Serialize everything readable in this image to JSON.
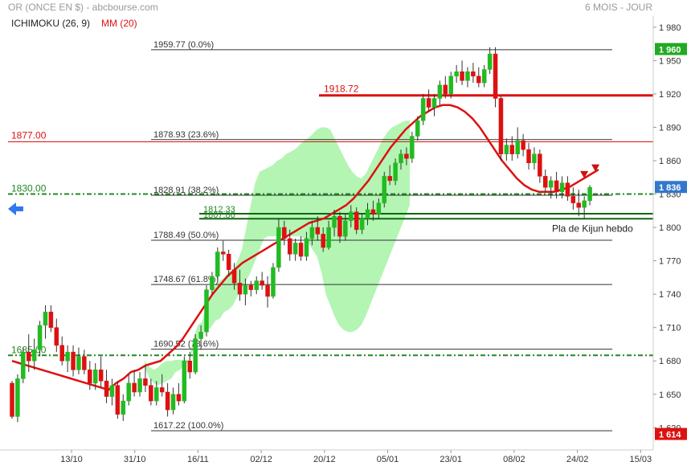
{
  "header": {
    "title": "OR (ONCE EN $) - abcbourse.com",
    "period": "6 MOIS - JOUR",
    "indicator1": "ICHIMOKU (26, 9)",
    "indicator2": "MM (20)"
  },
  "colors": {
    "up": "#22bb22",
    "down": "#dd1111",
    "cloud_bull": "#b4f5b4",
    "cloud_bear": "#f07878",
    "line": "#dd1111",
    "green_level": "#228822",
    "last_badge": "#22aa22",
    "low_badge": "#dd1111",
    "current_badge": "#3377cc",
    "nav_arrow": "#3377ee"
  },
  "chart_data": {
    "type": "candlestick",
    "ylim": [
      1600,
      1990
    ],
    "y_ticks": [
      "1 980",
      "1 950",
      "1 920",
      "1 890",
      "1 860",
      "1 830",
      "1 800",
      "1 770",
      "1 740",
      "1 710",
      "1 680",
      "1 650",
      "1 620"
    ],
    "y_tick_values": [
      1980,
      1950,
      1920,
      1890,
      1860,
      1830,
      1800,
      1770,
      1740,
      1710,
      1680,
      1650,
      1620
    ],
    "x_ticks": [
      "13/10",
      "31/10",
      "16/11",
      "02/12",
      "20/12",
      "05/01",
      "23/01",
      "08/02",
      "24/02",
      "15/03"
    ],
    "x_tick_index": [
      16,
      31,
      45,
      59,
      73,
      87,
      101,
      115,
      129,
      143
    ],
    "n_slots": 146,
    "fibonacci": [
      {
        "label": "1959.77  (0.0%)",
        "value": 1959.77
      },
      {
        "label": "1878.93  (23.6%)",
        "value": 1878.93
      },
      {
        "label": "1828.91  (38.2%)",
        "value": 1828.91
      },
      {
        "label": "1788.49  (50.0%)",
        "value": 1788.49
      },
      {
        "label": "1748.67  (61.8%)",
        "value": 1748.67
      },
      {
        "label": "1690.52  (78.6%)",
        "value": 1690.52
      },
      {
        "label": "1617.22  (100.0%)",
        "value": 1617.22
      }
    ],
    "red_levels": [
      {
        "label": "1918.72",
        "value": 1918.72
      },
      {
        "label": "1877.00",
        "value": 1877.0
      }
    ],
    "green_levels": [
      {
        "label": "1830.00",
        "value": 1830.0
      },
      {
        "label": "1685.00",
        "value": 1685.0
      }
    ],
    "green_zone": {
      "labels": [
        "1812.33",
        "1807.86"
      ],
      "values": [
        1812.33,
        1807.86
      ]
    },
    "annotation": "Pla de Kijun hebdo",
    "last_price": "1 836",
    "last_value": 1836,
    "high_badge": "1 960",
    "high_value": 1960,
    "low_badge": "1 614",
    "low_value": 1614,
    "candles": [
      [
        1660,
        1662,
        1628,
        1630
      ],
      [
        1630,
        1668,
        1625,
        1664
      ],
      [
        1664,
        1692,
        1660,
        1688
      ],
      [
        1688,
        1704,
        1670,
        1680
      ],
      [
        1680,
        1700,
        1672,
        1690
      ],
      [
        1690,
        1716,
        1684,
        1712
      ],
      [
        1712,
        1730,
        1700,
        1724
      ],
      [
        1724,
        1730,
        1706,
        1710
      ],
      [
        1710,
        1718,
        1688,
        1694
      ],
      [
        1694,
        1702,
        1676,
        1680
      ],
      [
        1680,
        1694,
        1670,
        1688
      ],
      [
        1688,
        1694,
        1666,
        1672
      ],
      [
        1672,
        1692,
        1668,
        1684
      ],
      [
        1684,
        1690,
        1668,
        1672
      ],
      [
        1672,
        1680,
        1654,
        1660
      ],
      [
        1660,
        1678,
        1654,
        1672
      ],
      [
        1672,
        1684,
        1656,
        1662
      ],
      [
        1662,
        1672,
        1642,
        1648
      ],
      [
        1648,
        1664,
        1640,
        1658
      ],
      [
        1658,
        1662,
        1628,
        1632
      ],
      [
        1632,
        1650,
        1626,
        1644
      ],
      [
        1644,
        1668,
        1640,
        1660
      ],
      [
        1660,
        1672,
        1648,
        1652
      ],
      [
        1652,
        1670,
        1648,
        1664
      ],
      [
        1664,
        1676,
        1652,
        1658
      ],
      [
        1658,
        1664,
        1640,
        1644
      ],
      [
        1644,
        1662,
        1640,
        1656
      ],
      [
        1656,
        1668,
        1648,
        1652
      ],
      [
        1652,
        1660,
        1630,
        1636
      ],
      [
        1636,
        1656,
        1632,
        1650
      ],
      [
        1650,
        1660,
        1640,
        1644
      ],
      [
        1644,
        1684,
        1642,
        1680
      ],
      [
        1680,
        1688,
        1664,
        1670
      ],
      [
        1670,
        1704,
        1668,
        1700
      ],
      [
        1700,
        1712,
        1690,
        1706
      ],
      [
        1706,
        1748,
        1702,
        1744
      ],
      [
        1744,
        1760,
        1740,
        1756
      ],
      [
        1756,
        1782,
        1752,
        1778
      ],
      [
        1778,
        1788,
        1770,
        1776
      ],
      [
        1776,
        1780,
        1756,
        1762
      ],
      [
        1762,
        1768,
        1744,
        1750
      ],
      [
        1750,
        1762,
        1734,
        1740
      ],
      [
        1740,
        1754,
        1730,
        1748
      ],
      [
        1748,
        1752,
        1738,
        1744
      ],
      [
        1744,
        1756,
        1740,
        1752
      ],
      [
        1752,
        1760,
        1744,
        1748
      ],
      [
        1748,
        1756,
        1728,
        1738
      ],
      [
        1738,
        1768,
        1736,
        1764
      ],
      [
        1764,
        1808,
        1760,
        1800
      ],
      [
        1800,
        1806,
        1784,
        1790
      ],
      [
        1790,
        1798,
        1770,
        1776
      ],
      [
        1776,
        1790,
        1770,
        1786
      ],
      [
        1786,
        1792,
        1770,
        1774
      ],
      [
        1774,
        1796,
        1770,
        1790
      ],
      [
        1790,
        1806,
        1784,
        1800
      ],
      [
        1800,
        1810,
        1788,
        1794
      ],
      [
        1794,
        1800,
        1778,
        1782
      ],
      [
        1782,
        1806,
        1780,
        1800
      ],
      [
        1800,
        1816,
        1792,
        1810
      ],
      [
        1810,
        1814,
        1786,
        1792
      ],
      [
        1792,
        1812,
        1788,
        1806
      ],
      [
        1806,
        1820,
        1800,
        1814
      ],
      [
        1814,
        1818,
        1794,
        1798
      ],
      [
        1798,
        1812,
        1794,
        1808
      ],
      [
        1808,
        1822,
        1802,
        1816
      ],
      [
        1816,
        1824,
        1806,
        1812
      ],
      [
        1812,
        1826,
        1808,
        1822
      ],
      [
        1822,
        1850,
        1818,
        1846
      ],
      [
        1846,
        1856,
        1838,
        1842
      ],
      [
        1842,
        1862,
        1838,
        1858
      ],
      [
        1858,
        1870,
        1852,
        1866
      ],
      [
        1866,
        1872,
        1856,
        1862
      ],
      [
        1862,
        1886,
        1858,
        1882
      ],
      [
        1882,
        1900,
        1878,
        1896
      ],
      [
        1896,
        1920,
        1892,
        1916
      ],
      [
        1916,
        1924,
        1904,
        1908
      ],
      [
        1908,
        1920,
        1900,
        1916
      ],
      [
        1916,
        1932,
        1910,
        1928
      ],
      [
        1928,
        1936,
        1916,
        1920
      ],
      [
        1920,
        1940,
        1916,
        1936
      ],
      [
        1936,
        1946,
        1930,
        1940
      ],
      [
        1940,
        1950,
        1928,
        1932
      ],
      [
        1932,
        1944,
        1926,
        1940
      ],
      [
        1940,
        1948,
        1930,
        1936
      ],
      [
        1936,
        1944,
        1926,
        1930
      ],
      [
        1930,
        1946,
        1926,
        1942
      ],
      [
        1942,
        1962,
        1938,
        1956
      ],
      [
        1956,
        1962,
        1908,
        1916
      ],
      [
        1916,
        1918,
        1860,
        1866
      ],
      [
        1866,
        1880,
        1860,
        1874
      ],
      [
        1874,
        1882,
        1860,
        1866
      ],
      [
        1866,
        1890,
        1862,
        1878
      ],
      [
        1878,
        1884,
        1864,
        1870
      ],
      [
        1870,
        1876,
        1852,
        1858
      ],
      [
        1858,
        1872,
        1852,
        1866
      ],
      [
        1866,
        1870,
        1840,
        1846
      ],
      [
        1846,
        1852,
        1832,
        1836
      ],
      [
        1836,
        1846,
        1826,
        1842
      ],
      [
        1842,
        1850,
        1826,
        1832
      ],
      [
        1832,
        1846,
        1826,
        1840
      ],
      [
        1840,
        1846,
        1824,
        1828
      ],
      [
        1828,
        1836,
        1816,
        1822
      ],
      [
        1822,
        1834,
        1810,
        1818
      ],
      [
        1818,
        1828,
        1808,
        1824
      ],
      [
        1824,
        1838,
        1820,
        1836
      ]
    ],
    "candle_start_slot": 0,
    "visible_candle_slots": 80,
    "mm20": [
      1680,
      1678,
      1676,
      1674,
      1672,
      1670,
      1668,
      1666,
      1664,
      1662,
      1660,
      1658,
      1656,
      1654,
      1660,
      1664,
      1670,
      1672,
      1676,
      1678,
      1680,
      1686,
      1692,
      1700,
      1710,
      1720,
      1730,
      1740,
      1748,
      1756,
      1762,
      1768,
      1772,
      1776,
      1780,
      1784,
      1788,
      1792,
      1796,
      1800,
      1804,
      1806,
      1808,
      1812,
      1816,
      1820,
      1826,
      1834,
      1842,
      1852,
      1862,
      1872,
      1880,
      1888,
      1894,
      1900,
      1904,
      1908,
      1910,
      1910,
      1908,
      1904,
      1898,
      1890,
      1880,
      1870,
      1860,
      1852,
      1844,
      1838,
      1834,
      1832,
      1832,
      1832,
      1834,
      1836,
      1840,
      1844,
      1848,
      1852
    ],
    "cloud_top": [
      1680,
      1675,
      1672,
      1674,
      1678,
      1680,
      1680,
      1681,
      1681,
      1681,
      1681,
      1700,
      1712,
      1715,
      1732,
      1740,
      1748,
      1752,
      1755,
      1760,
      1762,
      1770,
      1780,
      1800,
      1820,
      1840,
      1850,
      1852,
      1854,
      1856,
      1860,
      1862,
      1866,
      1868,
      1870,
      1874,
      1878,
      1880,
      1884,
      1888,
      1890,
      1890,
      1888,
      1880,
      1872,
      1864,
      1856,
      1850,
      1846,
      1844,
      1848,
      1856,
      1864,
      1872,
      1880,
      1886,
      1890,
      1892,
      1894,
      1896,
      1896
    ],
    "cloud_bottom": [
      1675,
      1665,
      1660,
      1658,
      1660,
      1662,
      1664,
      1670,
      1672,
      1676,
      1680,
      1690,
      1700,
      1706,
      1708,
      1710,
      1716,
      1718,
      1724,
      1726,
      1730,
      1738,
      1746,
      1752,
      1760,
      1770,
      1780,
      1790,
      1792,
      1792,
      1792,
      1792,
      1792,
      1792,
      1792,
      1792,
      1790,
      1786,
      1780,
      1774,
      1760,
      1740,
      1730,
      1720,
      1712,
      1708,
      1706,
      1706,
      1708,
      1712,
      1720,
      1730,
      1740,
      1750,
      1760,
      1770,
      1780,
      1790,
      1800,
      1810,
      1820
    ],
    "cloud_start_slot": 30,
    "chikou_note": ""
  }
}
